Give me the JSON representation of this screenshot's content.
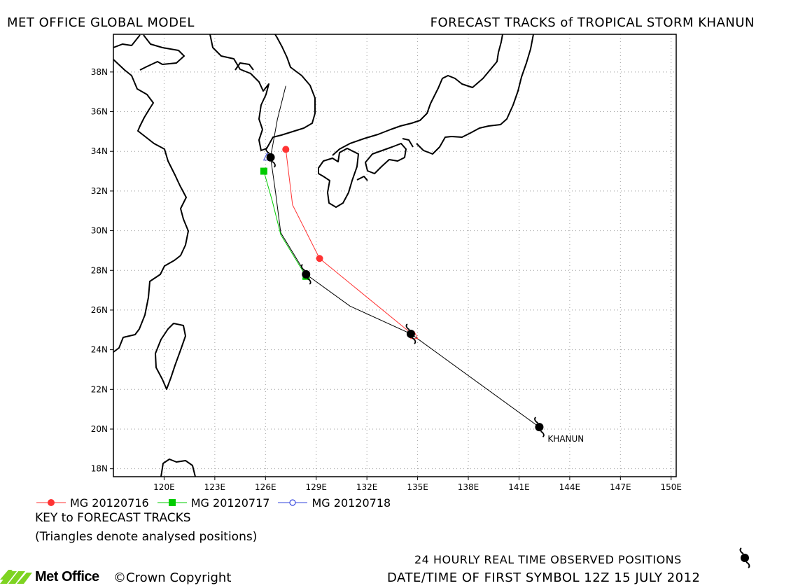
{
  "header": {
    "left_title": "MET OFFICE GLOBAL MODEL",
    "right_title": "FORECAST TRACKS of TROPICAL STORM KHANUN"
  },
  "map": {
    "lon_range": [
      117,
      150.3
    ],
    "lat_range": [
      17.6,
      39.9
    ],
    "lon_ticks": [
      120,
      123,
      126,
      129,
      132,
      135,
      138,
      141,
      144,
      147,
      150
    ],
    "lon_tick_labels": [
      "120E",
      "123E",
      "126E",
      "129E",
      "132E",
      "135E",
      "138E",
      "141E",
      "144E",
      "147E",
      "150E"
    ],
    "lat_ticks": [
      18,
      20,
      22,
      24,
      26,
      28,
      30,
      32,
      34,
      36,
      38
    ],
    "lat_tick_labels": [
      "18N",
      "20N",
      "22N",
      "24N",
      "26N",
      "28N",
      "30N",
      "32N",
      "34N",
      "36N",
      "38N"
    ],
    "grid": "dotted",
    "storm_label": "KHANUN"
  },
  "chart_data": {
    "type": "line",
    "title": "FORECAST TRACKS of TROPICAL STORM KHANUN",
    "xlabel": "",
    "ylabel": "",
    "xlim": [
      117,
      150.3
    ],
    "ylim": [
      17.6,
      39.9
    ],
    "observed_positions": [
      {
        "lon": 142.2,
        "lat": 20.1
      },
      {
        "lon": 134.6,
        "lat": 24.8
      },
      {
        "lon": 128.4,
        "lat": 27.8
      },
      {
        "lon": 126.3,
        "lat": 33.7
      }
    ],
    "observed_track": [
      [
        142.2,
        20.1
      ],
      [
        134.6,
        24.8
      ],
      [
        131.0,
        26.2
      ],
      [
        128.4,
        27.8
      ],
      [
        126.9,
        29.9
      ],
      [
        126.6,
        31.9
      ],
      [
        126.3,
        33.7
      ],
      [
        126.7,
        35.6
      ],
      [
        127.2,
        37.3
      ]
    ],
    "series": [
      {
        "name": "MG 20120716",
        "color": "#ff3333",
        "marker": "circle",
        "points": [
          [
            134.8,
            24.7
          ],
          [
            129.2,
            28.6
          ],
          [
            127.6,
            31.3
          ],
          [
            127.2,
            34.1
          ]
        ],
        "symbols": [
          [
            129.2,
            28.6
          ],
          [
            127.2,
            34.1
          ]
        ]
      },
      {
        "name": "MG 20120717",
        "color": "#00cc00",
        "marker": "square",
        "points": [
          [
            128.4,
            27.7
          ],
          [
            126.9,
            29.8
          ],
          [
            126.4,
            31.5
          ],
          [
            125.9,
            33.0
          ]
        ],
        "symbols": [
          [
            128.4,
            27.7
          ],
          [
            125.9,
            33.0
          ]
        ]
      },
      {
        "name": "MG 20120718",
        "color": "#3344dd",
        "marker": "circle-open",
        "points": [
          [
            126.1,
            33.7
          ]
        ],
        "symbols": []
      }
    ]
  },
  "key": {
    "title": "KEY to FORECAST TRACKS",
    "note": "(Triangles denote analysed positions)"
  },
  "footer": {
    "observed_text": "24 HOURLY REAL TIME OBSERVED POSITIONS",
    "date_text": "DATE/TIME OF FIRST SYMBOL 12Z 15 JULY 2012",
    "logo_text": "Met Office",
    "copyright_text": "©Crown Copyright"
  },
  "colors": {
    "observed_track": "#000000",
    "coastline": "#000000",
    "grid": "#999999",
    "logo_green": "#7ed321"
  }
}
